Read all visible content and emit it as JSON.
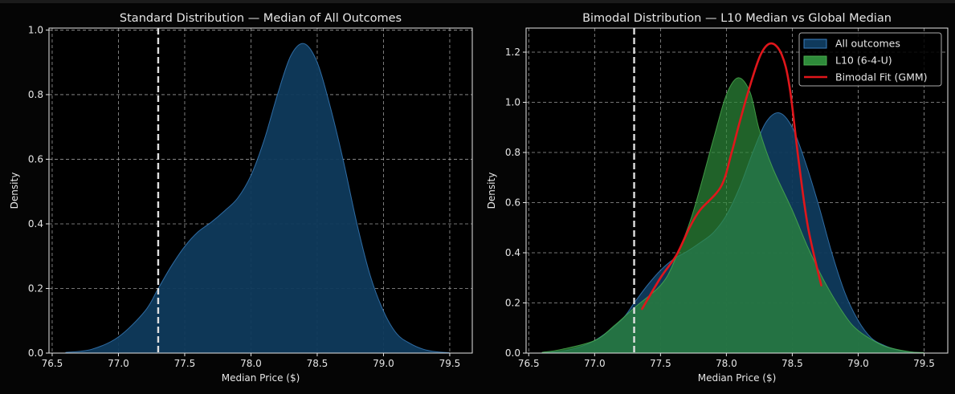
{
  "chart_data": [
    {
      "type": "area",
      "title": "Standard Distribution — Median of All Outcomes",
      "xlabel": "Median Price ($)",
      "ylabel": "Density",
      "xlim": [
        76.476,
        79.67
      ],
      "ylim": [
        0,
        1.006
      ],
      "xticks": [
        "76.5",
        "77.0",
        "77.5",
        "78.0",
        "78.5",
        "79.0",
        "79.5"
      ],
      "yticks": [
        "0.0",
        "0.2",
        "0.4",
        "0.6",
        "0.8",
        "1.0"
      ],
      "grid": true,
      "reference_line": {
        "x": 77.3,
        "style": "dashed",
        "color": "#e0e0e0"
      },
      "series": [
        {
          "name": "All outcomes",
          "color": "#3a7fc0",
          "fill": "#0f3a5c",
          "x": [
            76.6,
            76.8,
            77.0,
            77.2,
            77.3,
            77.4,
            77.5,
            77.6,
            77.7,
            77.8,
            77.9,
            78.0,
            78.1,
            78.2,
            78.3,
            78.4,
            78.5,
            78.6,
            78.7,
            78.8,
            78.9,
            79.0,
            79.1,
            79.2,
            79.3,
            79.4,
            79.5
          ],
          "y": [
            0.002,
            0.012,
            0.05,
            0.13,
            0.2,
            0.27,
            0.33,
            0.375,
            0.405,
            0.44,
            0.48,
            0.55,
            0.66,
            0.8,
            0.92,
            0.958,
            0.9,
            0.76,
            0.59,
            0.4,
            0.24,
            0.13,
            0.06,
            0.03,
            0.012,
            0.004,
            0.001
          ]
        }
      ]
    },
    {
      "type": "area",
      "title": "Bimodal Distribution — L10 Median vs Global Median",
      "xlabel": "Median Price ($)",
      "ylabel": "Density",
      "xlim": [
        76.48,
        79.68
      ],
      "ylim": [
        0,
        1.296
      ],
      "xticks": [
        "76.5",
        "77.0",
        "77.5",
        "78.0",
        "78.5",
        "79.0",
        "79.5"
      ],
      "yticks": [
        "0.0",
        "0.2",
        "0.4",
        "0.6",
        "0.8",
        "1.0",
        "1.2"
      ],
      "grid": true,
      "legend_position": "top-right",
      "reference_line": {
        "x": 77.3,
        "style": "dashed",
        "color": "#e0e0e0"
      },
      "series": [
        {
          "name": "All outcomes",
          "kind": "area",
          "color": "#3a7fc0",
          "fill": "#0f3a5c",
          "x": [
            76.6,
            76.8,
            77.0,
            77.2,
            77.3,
            77.4,
            77.5,
            77.6,
            77.7,
            77.8,
            77.9,
            78.0,
            78.1,
            78.2,
            78.3,
            78.4,
            78.5,
            78.6,
            78.7,
            78.8,
            78.9,
            79.0,
            79.1,
            79.2,
            79.3,
            79.4,
            79.5
          ],
          "y": [
            0.002,
            0.012,
            0.05,
            0.13,
            0.2,
            0.27,
            0.33,
            0.375,
            0.405,
            0.44,
            0.48,
            0.55,
            0.66,
            0.8,
            0.92,
            0.958,
            0.9,
            0.76,
            0.59,
            0.4,
            0.24,
            0.13,
            0.06,
            0.03,
            0.012,
            0.004,
            0.001
          ]
        },
        {
          "name": "L10 (6-4-U)",
          "kind": "area",
          "color": "#4caf50",
          "fill": "#2e8b3a",
          "x": [
            76.6,
            76.75,
            77.0,
            77.15,
            77.3,
            77.5,
            77.6,
            77.74,
            77.9,
            78.0,
            78.09,
            78.18,
            78.25,
            78.35,
            78.5,
            78.62,
            78.75,
            78.9,
            79.0,
            79.15,
            79.25,
            79.4,
            79.5
          ],
          "y": [
            0.003,
            0.015,
            0.05,
            0.11,
            0.18,
            0.27,
            0.36,
            0.55,
            0.85,
            1.03,
            1.098,
            1.04,
            0.89,
            0.74,
            0.57,
            0.42,
            0.28,
            0.15,
            0.09,
            0.04,
            0.02,
            0.005,
            0.002
          ]
        },
        {
          "name": "Bimodal Fit (GMM)",
          "kind": "line",
          "color": "#e0161b",
          "x": [
            77.36,
            77.5,
            77.62,
            77.72,
            77.8,
            77.96,
            78.04,
            78.09,
            78.17,
            78.26,
            78.34,
            78.42,
            78.48,
            78.55,
            78.62,
            78.72
          ],
          "y": [
            0.176,
            0.3,
            0.39,
            0.5,
            0.57,
            0.665,
            0.8,
            0.9,
            1.05,
            1.19,
            1.235,
            1.19,
            1.06,
            0.76,
            0.5,
            0.27
          ]
        }
      ]
    }
  ]
}
